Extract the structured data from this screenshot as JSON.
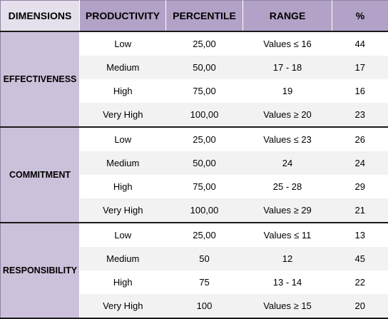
{
  "header": {
    "dimensions": "DIMENSIONS",
    "productivity": "PRODUCTIVITY",
    "percentile": "PERCENTILE",
    "range": "RANGE",
    "percent": "%"
  },
  "groups": [
    {
      "dimension": "EFFECTIVENESS",
      "rows": [
        {
          "productivity": "Low",
          "percentile": "25,00",
          "range": "Values ≤ 16",
          "percent": "44"
        },
        {
          "productivity": "Medium",
          "percentile": "50,00",
          "range": "17 - 18",
          "percent": "17"
        },
        {
          "productivity": "High",
          "percentile": "75,00",
          "range": "19",
          "percent": "16"
        },
        {
          "productivity": "Very High",
          "percentile": "100,00",
          "range": "Values ≥ 20",
          "percent": "23"
        }
      ]
    },
    {
      "dimension": "COMMITMENT",
      "rows": [
        {
          "productivity": "Low",
          "percentile": "25,00",
          "range": "Values ≤ 23",
          "percent": "26"
        },
        {
          "productivity": "Medium",
          "percentile": "50,00",
          "range": "24",
          "percent": "24"
        },
        {
          "productivity": "High",
          "percentile": "75,00",
          "range": "25 - 28",
          "percent": "29"
        },
        {
          "productivity": "Very High",
          "percentile": "100,00",
          "range": "Values ≥ 29",
          "percent": "21"
        }
      ]
    },
    {
      "dimension": "RESPONSIBILITY",
      "rows": [
        {
          "productivity": "Low",
          "percentile": "25,00",
          "range": "Values ≤ 11",
          "percent": "13"
        },
        {
          "productivity": "Medium",
          "percentile": "50",
          "range": "12",
          "percent": "45"
        },
        {
          "productivity": "High",
          "percentile": "75",
          "range": "13 - 14",
          "percent": "22"
        },
        {
          "productivity": "Very High",
          "percentile": "100",
          "range": "Values ≥ 15",
          "percent": "20"
        }
      ]
    }
  ]
}
